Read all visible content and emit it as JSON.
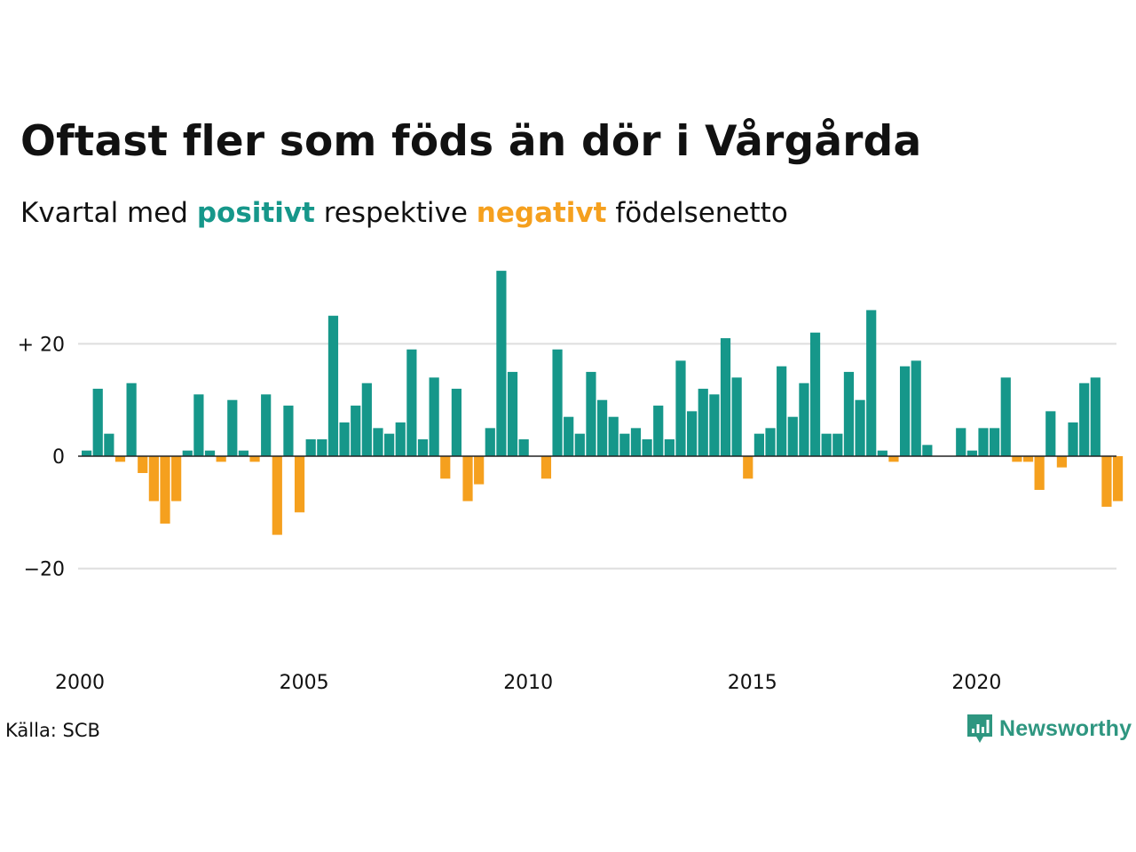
{
  "title": "Oftast fler som föds än dör i Vårgårda",
  "subtitle": {
    "prefix": "Kvartal med ",
    "positive_word": "positivt",
    "middle": " respektive ",
    "negative_word": "negativt",
    "suffix": " födelsenetto"
  },
  "colors": {
    "positive": "#16978a",
    "negative": "#f5a01e",
    "gridline": "#dedede",
    "zero_line": "#222222",
    "text": "#111111",
    "brand": "#2e9680"
  },
  "source": "Källa: SCB",
  "brand": {
    "name": "Newsworthy",
    "icon": "newsworthy-logo-icon"
  },
  "chart_data": {
    "type": "bar",
    "x_start": "2000 Q1",
    "frequency": "quarterly",
    "values": [
      1,
      12,
      4,
      -1,
      13,
      -3,
      -8,
      -12,
      -8,
      1,
      11,
      1,
      -1,
      10,
      1,
      -1,
      11,
      -14,
      9,
      -10,
      3,
      3,
      25,
      6,
      9,
      13,
      5,
      4,
      6,
      19,
      3,
      14,
      -4,
      12,
      -8,
      -5,
      5,
      33,
      15,
      3,
      0,
      -4,
      19,
      7,
      4,
      15,
      10,
      7,
      4,
      5,
      3,
      9,
      3,
      17,
      8,
      12,
      11,
      21,
      14,
      -4,
      4,
      5,
      16,
      7,
      13,
      22,
      4,
      4,
      15,
      10,
      26,
      1,
      -1,
      16,
      17,
      2,
      0,
      0,
      5,
      1,
      5,
      5,
      14,
      -1,
      -1,
      -6,
      8,
      -2,
      6,
      13,
      14,
      -9,
      -8
    ],
    "x_ticks": [
      "2000",
      "2005",
      "2010",
      "2015",
      "2020"
    ],
    "y_ticks": [
      {
        "value": 20,
        "label": "+ 20"
      },
      {
        "value": 0,
        "label": "0"
      },
      {
        "value": -20,
        "label": "−20"
      }
    ],
    "ylim": [
      -35,
      35
    ],
    "grid": true,
    "xlabel": "",
    "ylabel": ""
  }
}
